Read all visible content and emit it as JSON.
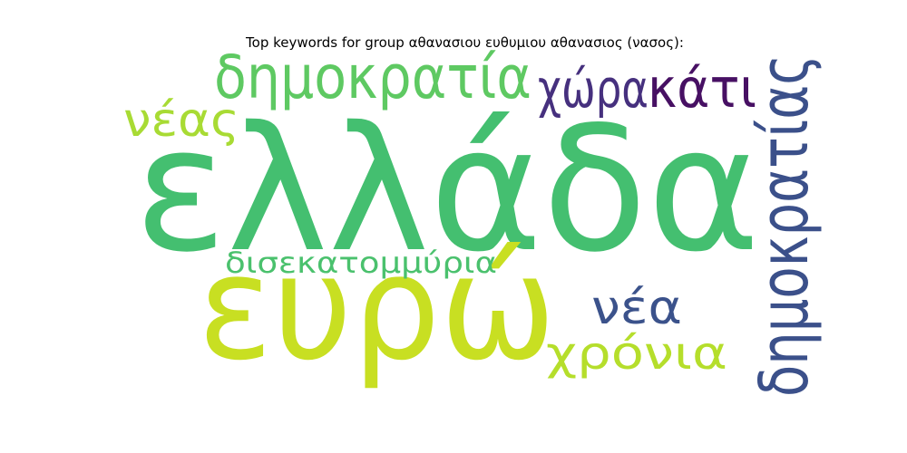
{
  "chart_data": {
    "type": "wordcloud",
    "title": "Top keywords for group αθανασιου ευθυμιου αθανασιος (νασος):",
    "words": [
      {
        "text": "ελλάδα",
        "color": "#44bf70",
        "rank": 1
      },
      {
        "text": "ευρώ",
        "color": "#c8df22",
        "rank": 2
      },
      {
        "text": "δημοκρατίας",
        "color": "#3b508a",
        "rank": 3
      },
      {
        "text": "δημοκρατία",
        "color": "#5ec962",
        "rank": 4
      },
      {
        "text": "χώρα",
        "color": "#46307e",
        "rank": 5
      },
      {
        "text": "κάτι",
        "color": "#471063",
        "rank": 6
      },
      {
        "text": "νέας",
        "color": "#a8db34",
        "rank": 7
      },
      {
        "text": "νέα",
        "color": "#3b528b",
        "rank": 8
      },
      {
        "text": "χρόνια",
        "color": "#b5de2b",
        "rank": 9
      },
      {
        "text": "δισεκατομμύρια",
        "color": "#4ac16d",
        "rank": 10
      }
    ]
  }
}
